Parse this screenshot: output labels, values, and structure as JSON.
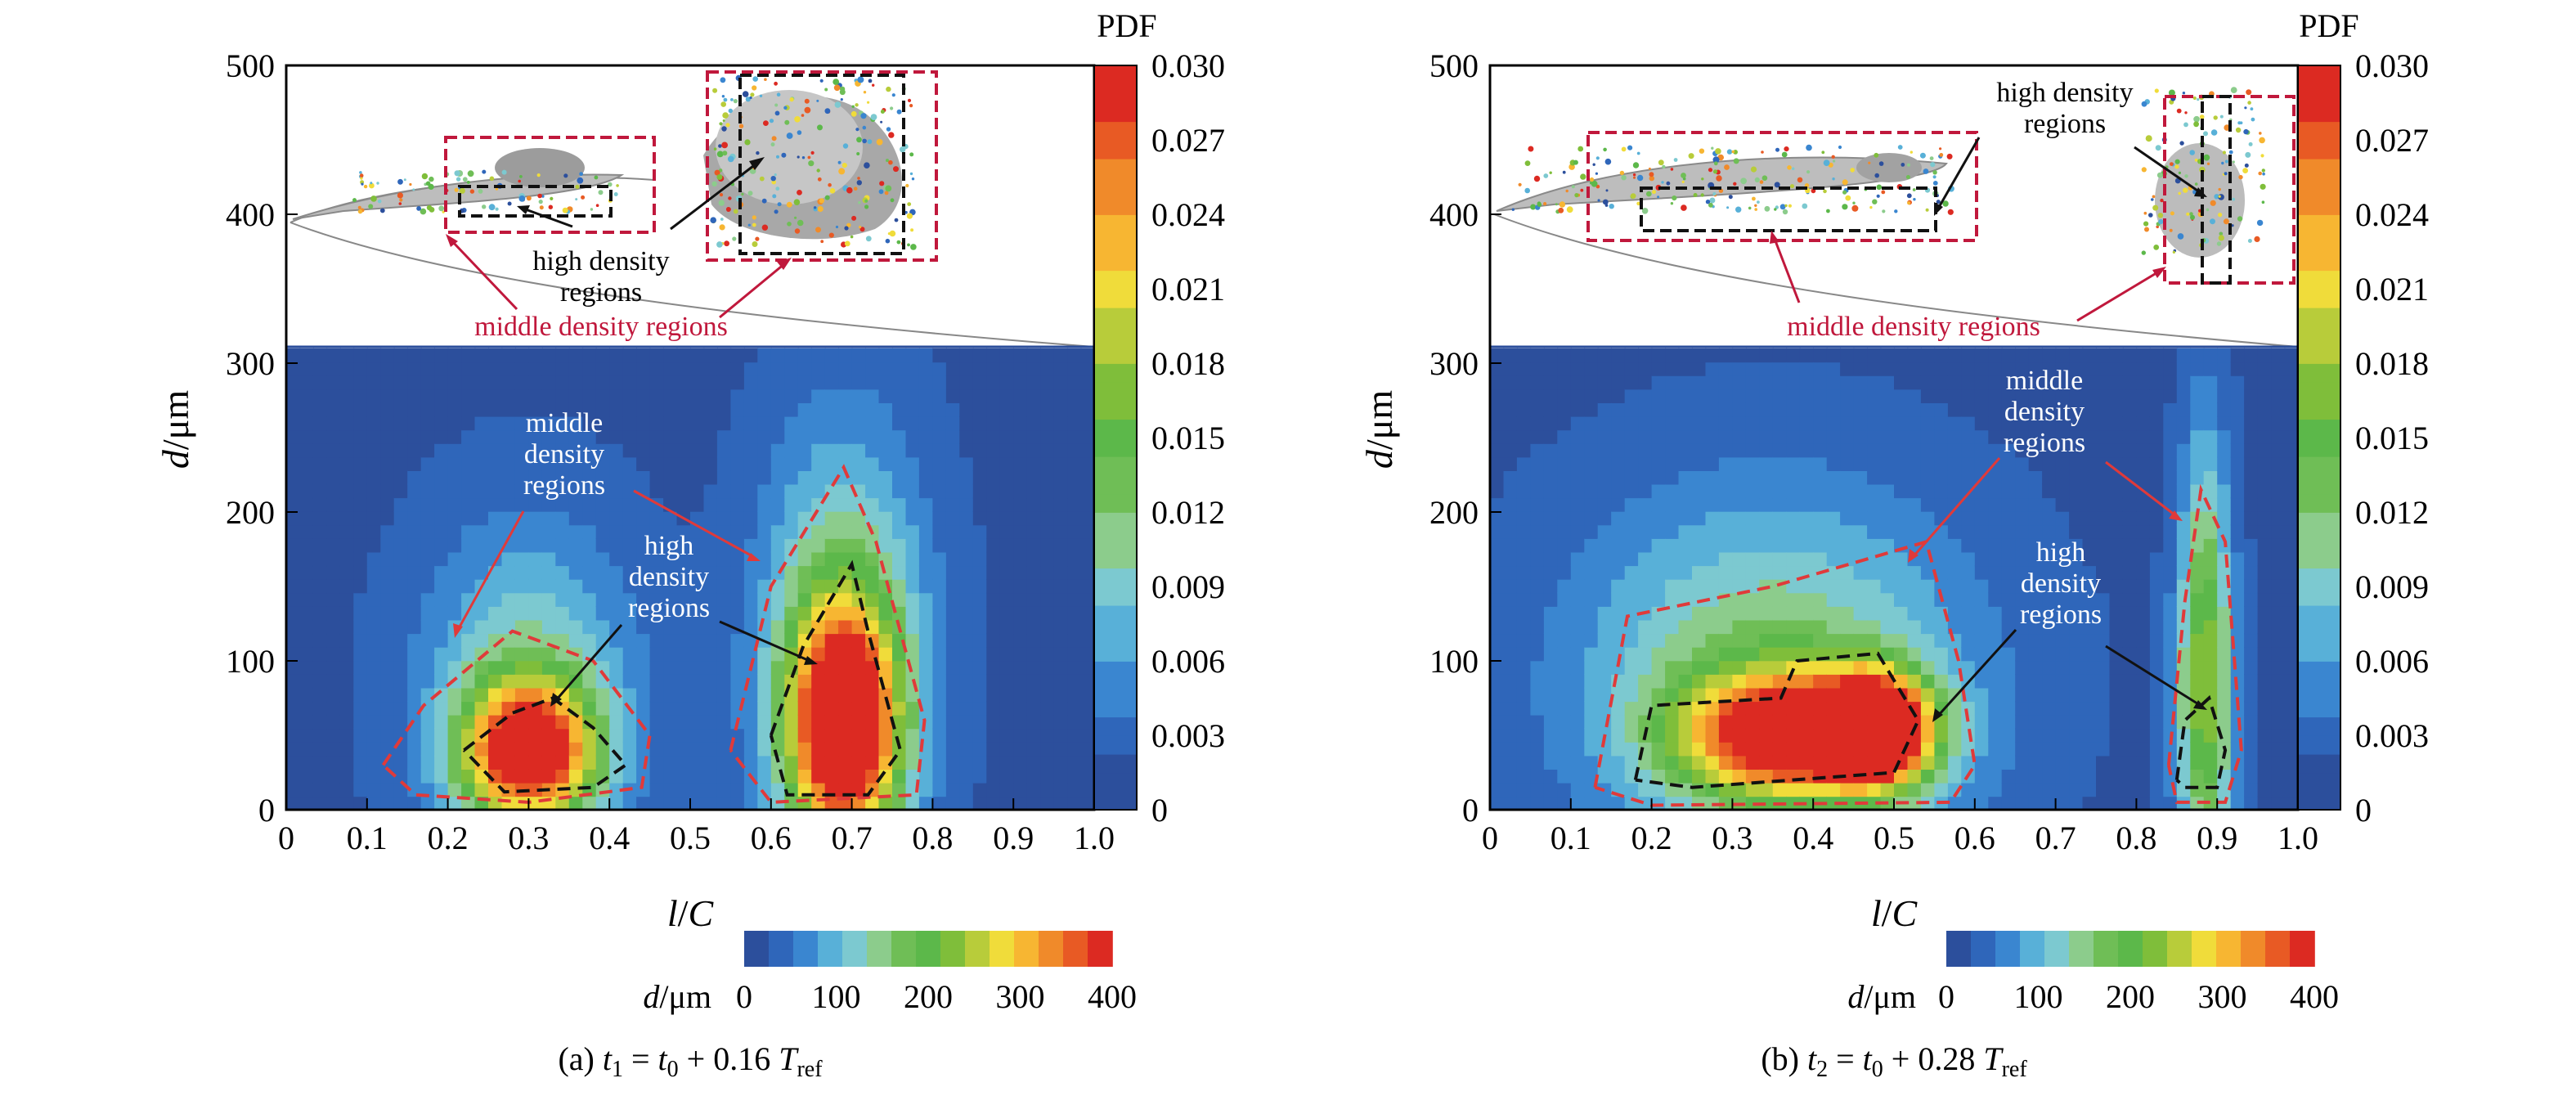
{
  "colors": {
    "background_low": "#2c4f9c",
    "cmap": [
      "#2c4f9c",
      "#2f66ba",
      "#3a86d0",
      "#58b0d8",
      "#7cc9d0",
      "#8ccc8c",
      "#6fbe56",
      "#5cb84a",
      "#7fbe3a",
      "#b8cc3a",
      "#f0dc3a",
      "#f7b632",
      "#f08a2a",
      "#e85a24",
      "#dc2a22"
    ],
    "red_contour": "#e03a3a",
    "black_contour": "#111111",
    "annotation_red": "#c0183c"
  },
  "chart_data": [
    {
      "type": "heatmap",
      "panel": "a",
      "caption": {
        "prefix": "(a) ",
        "t": "t",
        "t_sub": "1",
        "eq": " = ",
        "t0": "t",
        "t0_sub": "0",
        "plus": " + 0.16 ",
        "T": "T",
        "T_sub": "ref"
      },
      "xlabel": {
        "italic": "l",
        "rest": "/",
        "italic2": "C"
      },
      "ylabel": {
        "italic": "d",
        "rest": "/μm"
      },
      "xlim": [
        0,
        1.0
      ],
      "ylim": [
        0,
        500
      ],
      "xticks": [
        "0",
        "0.1",
        "0.2",
        "0.3",
        "0.4",
        "0.5",
        "0.6",
        "0.7",
        "0.8",
        "0.9",
        "1.0"
      ],
      "yticks": [
        "0",
        "100",
        "200",
        "300",
        "400",
        "500"
      ],
      "colorbar": {
        "title": "PDF",
        "range": [
          0,
          0.03
        ],
        "ticks": [
          "0",
          "0.003",
          "0.006",
          "0.009",
          "0.012",
          "0.015",
          "0.018",
          "0.021",
          "0.024",
          "0.027",
          "0.030"
        ]
      },
      "hbar": {
        "label_italic": "d",
        "label_rest": "/μm",
        "ticks": [
          "0",
          "100",
          "200",
          "300",
          "400"
        ],
        "range": [
          0,
          400
        ]
      },
      "density_peaks": [
        {
          "x": 0.3,
          "y": 40,
          "peak": 0.028,
          "sx": 0.08,
          "sy": 45
        },
        {
          "x": 0.69,
          "y": 55,
          "peak": 0.03,
          "sx": 0.065,
          "sy": 75
        },
        {
          "x": 0.3,
          "y": 80,
          "peak": 0.009,
          "sx": 0.13,
          "sy": 110
        },
        {
          "x": 0.69,
          "y": 110,
          "peak": 0.012,
          "sx": 0.1,
          "sy": 140
        }
      ],
      "contours": {
        "middle": [
          [
            [
              0.12,
              30
            ],
            [
              0.17,
              70
            ],
            [
              0.28,
              120
            ],
            [
              0.38,
              100
            ],
            [
              0.45,
              50
            ],
            [
              0.44,
              15
            ],
            [
              0.3,
              5
            ],
            [
              0.16,
              10
            ],
            [
              0.12,
              30
            ]
          ],
          [
            [
              0.55,
              40
            ],
            [
              0.6,
              150
            ],
            [
              0.69,
              230
            ],
            [
              0.73,
              180
            ],
            [
              0.79,
              60
            ],
            [
              0.78,
              10
            ],
            [
              0.6,
              5
            ],
            [
              0.55,
              40
            ]
          ]
        ],
        "high": [
          [
            [
              0.22,
              40
            ],
            [
              0.28,
              65
            ],
            [
              0.33,
              75
            ],
            [
              0.38,
              55
            ],
            [
              0.42,
              30
            ],
            [
              0.38,
              15
            ],
            [
              0.27,
              12
            ],
            [
              0.22,
              40
            ]
          ],
          [
            [
              0.6,
              50
            ],
            [
              0.64,
              110
            ],
            [
              0.7,
              165
            ],
            [
              0.72,
              120
            ],
            [
              0.76,
              40
            ],
            [
              0.72,
              10
            ],
            [
              0.62,
              10
            ],
            [
              0.6,
              50
            ]
          ]
        ]
      },
      "labels": {
        "middle_density": [
          "middle",
          "density",
          "regions"
        ],
        "high_density": [
          "high",
          "density",
          "regions"
        ],
        "inset_high": [
          "high density",
          "regions"
        ],
        "inset_middle": "middle density regions"
      }
    },
    {
      "type": "heatmap",
      "panel": "b",
      "caption": {
        "prefix": "(b) ",
        "t": "t",
        "t_sub": "2",
        "eq": " = ",
        "t0": "t",
        "t0_sub": "0",
        "plus": " + 0.28 ",
        "T": "T",
        "T_sub": "ref"
      },
      "xlabel": {
        "italic": "l",
        "rest": "/",
        "italic2": "C"
      },
      "ylabel": {
        "italic": "d",
        "rest": "/μm"
      },
      "xlim": [
        0,
        1.0
      ],
      "ylim": [
        0,
        500
      ],
      "xticks": [
        "0",
        "0.1",
        "0.2",
        "0.3",
        "0.4",
        "0.5",
        "0.6",
        "0.7",
        "0.8",
        "0.9",
        "1.0"
      ],
      "yticks": [
        "0",
        "100",
        "200",
        "300",
        "400",
        "500"
      ],
      "colorbar": {
        "title": "PDF",
        "range": [
          0,
          0.03
        ],
        "ticks": [
          "0",
          "0.003",
          "0.006",
          "0.009",
          "0.012",
          "0.015",
          "0.018",
          "0.021",
          "0.024",
          "0.027",
          "0.030"
        ]
      },
      "hbar": {
        "label_italic": "d",
        "label_rest": "/μm",
        "ticks": [
          "0",
          "100",
          "200",
          "300",
          "400"
        ],
        "range": [
          0,
          400
        ]
      },
      "density_peaks": [
        {
          "x": 0.38,
          "y": 50,
          "peak": 0.027,
          "sx": 0.14,
          "sy": 40
        },
        {
          "x": 0.48,
          "y": 55,
          "peak": 0.029,
          "sx": 0.06,
          "sy": 35
        },
        {
          "x": 0.35,
          "y": 90,
          "peak": 0.011,
          "sx": 0.24,
          "sy": 120
        },
        {
          "x": 0.885,
          "y": 60,
          "peak": 0.013,
          "sx": 0.035,
          "sy": 110
        },
        {
          "x": 0.885,
          "y": 170,
          "peak": 0.007,
          "sx": 0.03,
          "sy": 120
        }
      ],
      "contours": {
        "middle": [
          [
            [
              0.13,
              15
            ],
            [
              0.17,
              130
            ],
            [
              0.35,
              150
            ],
            [
              0.54,
              180
            ],
            [
              0.58,
              100
            ],
            [
              0.6,
              30
            ],
            [
              0.57,
              5
            ],
            [
              0.2,
              3
            ],
            [
              0.13,
              15
            ]
          ],
          [
            [
              0.84,
              30
            ],
            [
              0.86,
              140
            ],
            [
              0.88,
              215
            ],
            [
              0.91,
              180
            ],
            [
              0.93,
              40
            ],
            [
              0.91,
              5
            ],
            [
              0.85,
              5
            ],
            [
              0.84,
              30
            ]
          ]
        ],
        "high": [
          [
            [
              0.18,
              20
            ],
            [
              0.2,
              70
            ],
            [
              0.36,
              75
            ],
            [
              0.38,
              100
            ],
            [
              0.48,
              105
            ],
            [
              0.53,
              60
            ],
            [
              0.5,
              25
            ],
            [
              0.25,
              15
            ],
            [
              0.18,
              20
            ]
          ],
          [
            [
              0.85,
              20
            ],
            [
              0.86,
              60
            ],
            [
              0.89,
              75
            ],
            [
              0.91,
              40
            ],
            [
              0.9,
              15
            ],
            [
              0.86,
              15
            ],
            [
              0.85,
              20
            ]
          ]
        ]
      },
      "labels": {
        "middle_density": [
          "middle",
          "density",
          "regions"
        ],
        "high_density": [
          "high",
          "density",
          "regions"
        ],
        "inset_high": [
          "high density",
          "regions"
        ],
        "inset_middle": "middle density regions"
      }
    }
  ]
}
